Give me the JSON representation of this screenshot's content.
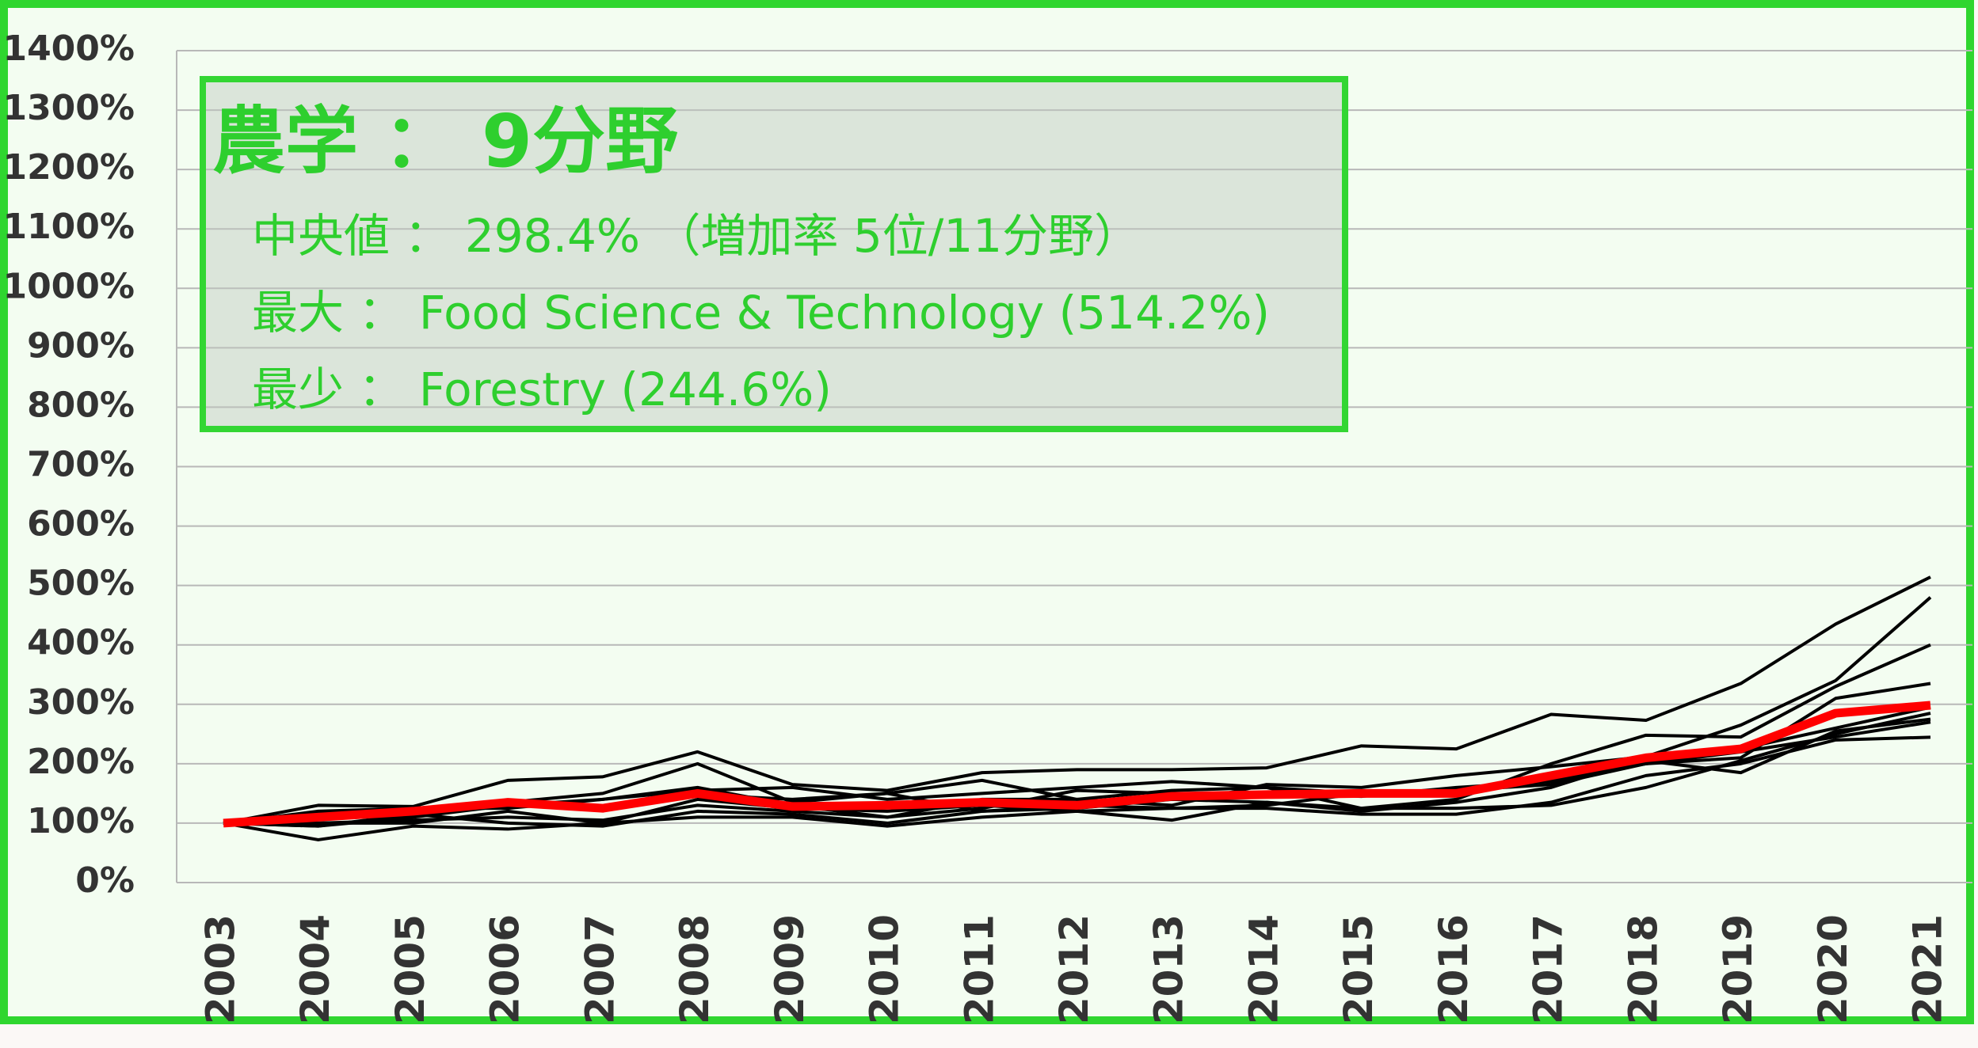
{
  "chart_data": {
    "type": "line",
    "annotation_title": "農学 ： 9分野",
    "annotations": [
      "中央値 ： 298.4% （増加率 5位/11分野）",
      "最大 ： Food Science & Technology (514.2%)",
      "最少 ： Forestry (244.6%)"
    ],
    "categories": [
      "2003",
      "2004",
      "2005",
      "2006",
      "2007",
      "2008",
      "2009",
      "2010",
      "2011",
      "2012",
      "2013",
      "2014",
      "2015",
      "2016",
      "2017",
      "2018",
      "2019",
      "2020",
      "2021"
    ],
    "series": [
      {
        "color": "#000000",
        "values": [
          100,
          130,
          128,
          172,
          178,
          220,
          165,
          155,
          185,
          190,
          190,
          193,
          230,
          225,
          283,
          273,
          335,
          435,
          514.2
        ]
      },
      {
        "color": "#000000",
        "values": [
          100,
          95,
          110,
          130,
          125,
          148,
          140,
          150,
          172,
          140,
          130,
          165,
          160,
          180,
          195,
          212,
          265,
          340,
          480
        ]
      },
      {
        "color": "#000000",
        "values": [
          100,
          120,
          125,
          125,
          140,
          155,
          160,
          140,
          150,
          160,
          170,
          160,
          125,
          140,
          200,
          248,
          245,
          330,
          400
        ]
      },
      {
        "color": "#000000",
        "values": [
          100,
          110,
          125,
          135,
          150,
          200,
          135,
          150,
          120,
          130,
          125,
          130,
          150,
          155,
          175,
          200,
          210,
          310,
          335
        ]
      },
      {
        "color": "#000000",
        "values": [
          100,
          95,
          115,
          100,
          95,
          120,
          115,
          100,
          120,
          125,
          140,
          135,
          120,
          135,
          160,
          210,
          225,
          260,
          295
        ]
      },
      {
        "color": "#000000",
        "values": [
          100,
          72,
          95,
          90,
          100,
          110,
          110,
          95,
          110,
          120,
          105,
          135,
          125,
          125,
          130,
          160,
          205,
          250,
          285
        ]
      },
      {
        "color": "#000000",
        "values": [
          100,
          100,
          105,
          110,
          105,
          130,
          120,
          110,
          125,
          155,
          150,
          150,
          145,
          160,
          170,
          205,
          185,
          255,
          275
        ]
      },
      {
        "color": "#000000",
        "values": [
          100,
          100,
          100,
          120,
          100,
          140,
          125,
          120,
          130,
          120,
          125,
          125,
          115,
          115,
          135,
          180,
          200,
          240,
          244.6
        ]
      },
      {
        "color": "#000000",
        "values": [
          100,
          115,
          120,
          130,
          140,
          160,
          130,
          110,
          140,
          140,
          155,
          160,
          150,
          155,
          165,
          200,
          220,
          245,
          270
        ]
      },
      {
        "color": "#ff0000",
        "values": [
          100,
          110,
          120,
          135,
          125,
          150,
          128,
          130,
          135,
          130,
          145,
          148,
          150,
          150,
          180,
          210,
          225,
          285,
          298.4
        ]
      }
    ],
    "ylim": [
      0,
      1400
    ],
    "yticks": [
      {
        "value": 0,
        "label": "0%"
      },
      {
        "value": 100,
        "label": "100%"
      },
      {
        "value": 200,
        "label": "200%"
      },
      {
        "value": 300,
        "label": "300%"
      },
      {
        "value": 400,
        "label": "400%"
      },
      {
        "value": 500,
        "label": "500%"
      },
      {
        "value": 600,
        "label": "600%"
      },
      {
        "value": 700,
        "label": "700%"
      },
      {
        "value": 800,
        "label": "800%"
      },
      {
        "value": 900,
        "label": "900%"
      },
      {
        "value": 1000,
        "label": "1000%"
      },
      {
        "value": 1100,
        "label": "1100%"
      },
      {
        "value": 1200,
        "label": "1200%"
      },
      {
        "value": 1300,
        "label": "1300%"
      },
      {
        "value": 1400,
        "label": "1400%"
      }
    ],
    "grid": true
  }
}
